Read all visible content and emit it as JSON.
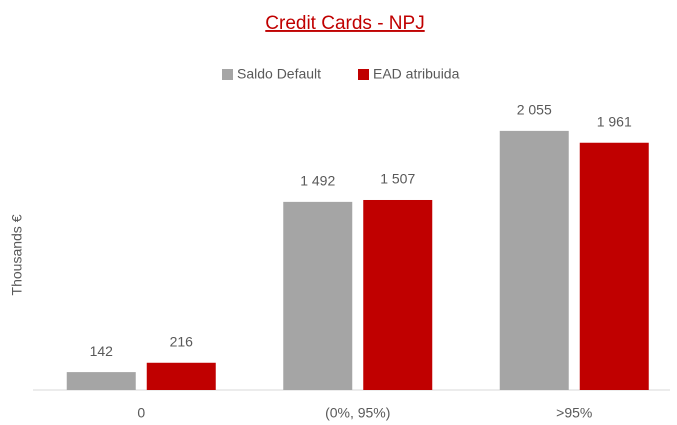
{
  "chart_data": {
    "type": "bar",
    "title": "Credit Cards - NPJ",
    "y_label": "Thousands €",
    "categories": [
      "0",
      "(0%, 95%)",
      ">95%"
    ],
    "series": [
      {
        "name": "Saldo Default",
        "color": "#a5a5a5",
        "values": [
          142,
          1492,
          2055
        ],
        "value_labels": [
          "142",
          "1 492",
          "2 055"
        ]
      },
      {
        "name": "EAD atribuida",
        "color": "#c00000",
        "values": [
          216,
          1507,
          1961
        ],
        "value_labels": [
          "216",
          "1 507",
          "1 961"
        ]
      }
    ],
    "ylim": [
      0,
      2300
    ],
    "legend": "top"
  }
}
